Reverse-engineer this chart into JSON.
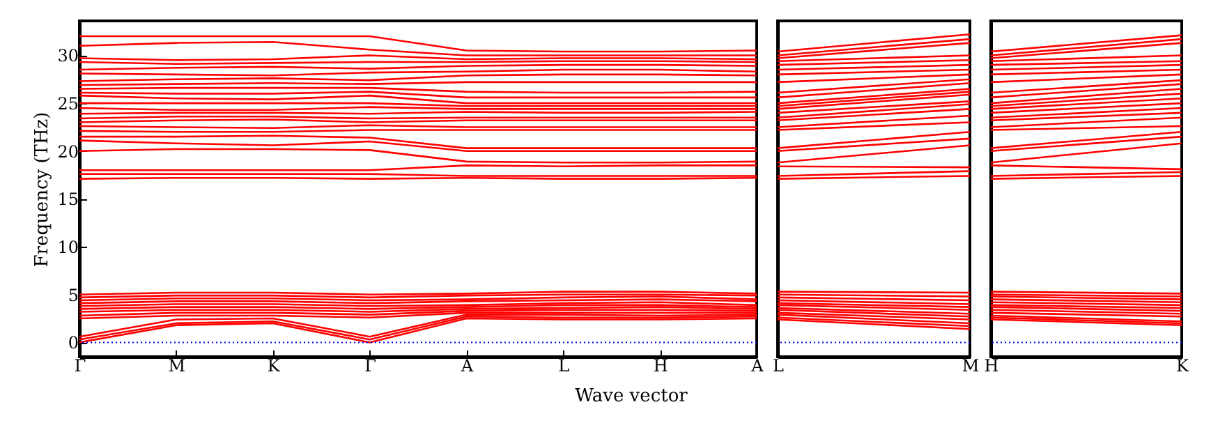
{
  "chart_data": [
    {
      "type": "line",
      "ylabel": "Frequency (THz)",
      "xlabel": "Wave vector",
      "grid": false,
      "marker": "none",
      "line_style": "solid",
      "categories": [
        "Γ",
        "M",
        "K",
        "Γ",
        "A",
        "L",
        "H",
        "A"
      ],
      "ylim": [
        -1.5,
        33.6
      ],
      "yticks": [
        0,
        5,
        10,
        15,
        20,
        25,
        30
      ],
      "ref_lines": [
        {
          "axis": "y",
          "value": 0,
          "color": "#0000ff",
          "line_style": "dotted"
        }
      ],
      "series": [
        {
          "color": "#ff0000",
          "values": [
            0.0,
            1.8,
            2.0,
            0.0,
            2.5,
            2.4,
            2.4,
            2.5
          ]
        },
        {
          "color": "#ff0000",
          "values": [
            0.3,
            2.0,
            2.2,
            0.3,
            2.7,
            2.6,
            2.6,
            2.7
          ]
        },
        {
          "color": "#ff0000",
          "values": [
            0.6,
            2.4,
            2.5,
            0.6,
            2.9,
            2.9,
            2.8,
            2.9
          ]
        },
        {
          "color": "#ff0000",
          "values": [
            2.5,
            2.8,
            2.8,
            2.6,
            3.1,
            3.1,
            3.1,
            3.1
          ]
        },
        {
          "color": "#ff0000",
          "values": [
            2.8,
            3.1,
            3.1,
            2.9,
            3.3,
            3.4,
            3.4,
            3.3
          ]
        },
        {
          "color": "#ff0000",
          "values": [
            3.2,
            3.4,
            3.4,
            3.2,
            3.5,
            3.6,
            3.7,
            3.5
          ]
        },
        {
          "color": "#ff0000",
          "values": [
            3.5,
            3.7,
            3.7,
            3.5,
            3.7,
            3.9,
            3.9,
            3.7
          ]
        },
        {
          "color": "#ff0000",
          "values": [
            3.8,
            4.0,
            4.0,
            3.8,
            3.9,
            4.1,
            4.2,
            3.9
          ]
        },
        {
          "color": "#ff0000",
          "values": [
            4.1,
            4.3,
            4.3,
            4.1,
            4.3,
            4.4,
            4.5,
            4.3
          ]
        },
        {
          "color": "#ff0000",
          "values": [
            4.4,
            4.6,
            4.6,
            4.4,
            4.5,
            4.7,
            4.8,
            4.5
          ]
        },
        {
          "color": "#ff0000",
          "values": [
            4.7,
            4.9,
            4.9,
            4.7,
            4.9,
            5.0,
            5.0,
            4.9
          ]
        },
        {
          "color": "#ff0000",
          "values": [
            5.0,
            5.2,
            5.2,
            5.0,
            5.1,
            5.3,
            5.3,
            5.1
          ]
        },
        {
          "color": "#ff0000",
          "values": [
            17.1,
            17.2,
            17.2,
            17.1,
            17.2,
            17.1,
            17.1,
            17.2
          ]
        },
        {
          "color": "#ff0000",
          "values": [
            17.6,
            17.6,
            17.6,
            17.6,
            17.4,
            17.4,
            17.4,
            17.4
          ]
        },
        {
          "color": "#ff0000",
          "values": [
            18.0,
            18.0,
            18.0,
            18.0,
            18.5,
            18.4,
            18.5,
            18.5
          ]
        },
        {
          "color": "#ff0000",
          "values": [
            20.0,
            20.2,
            20.2,
            20.1,
            18.9,
            18.8,
            18.8,
            18.9
          ]
        },
        {
          "color": "#ff0000",
          "values": [
            21.1,
            20.8,
            20.6,
            21.0,
            20.0,
            20.0,
            20.0,
            20.0
          ]
        },
        {
          "color": "#ff0000",
          "values": [
            21.5,
            21.5,
            21.6,
            21.4,
            20.3,
            20.3,
            20.3,
            20.3
          ]
        },
        {
          "color": "#ff0000",
          "values": [
            22.1,
            22.0,
            22.0,
            22.2,
            22.2,
            22.2,
            22.2,
            22.2
          ]
        },
        {
          "color": "#ff0000",
          "values": [
            22.6,
            22.5,
            22.4,
            22.7,
            22.5,
            22.5,
            22.5,
            22.5
          ]
        },
        {
          "color": "#ff0000",
          "values": [
            23.0,
            23.2,
            23.3,
            23.0,
            23.2,
            23.2,
            23.2,
            23.2
          ]
        },
        {
          "color": "#ff0000",
          "values": [
            23.4,
            23.6,
            23.6,
            23.4,
            23.5,
            23.5,
            23.5,
            23.5
          ]
        },
        {
          "color": "#ff0000",
          "values": [
            23.9,
            24.0,
            24.0,
            23.9,
            24.1,
            24.0,
            24.0,
            24.1
          ]
        },
        {
          "color": "#ff0000",
          "values": [
            24.5,
            24.3,
            24.3,
            24.6,
            24.4,
            24.4,
            24.4,
            24.4
          ]
        },
        {
          "color": "#ff0000",
          "values": [
            25.0,
            25.0,
            25.0,
            25.0,
            24.7,
            24.7,
            24.7,
            24.7
          ]
        },
        {
          "color": "#ff0000",
          "values": [
            25.8,
            25.5,
            25.4,
            25.8,
            25.0,
            25.0,
            25.0,
            25.0
          ]
        },
        {
          "color": "#ff0000",
          "values": [
            26.1,
            26.0,
            26.0,
            26.2,
            25.6,
            25.6,
            25.6,
            25.6
          ]
        },
        {
          "color": "#ff0000",
          "values": [
            26.5,
            26.6,
            26.6,
            26.6,
            26.2,
            26.1,
            26.1,
            26.2
          ]
        },
        {
          "color": "#ff0000",
          "values": [
            26.9,
            27.0,
            27.1,
            27.0,
            27.2,
            27.2,
            27.2,
            27.2
          ]
        },
        {
          "color": "#ff0000",
          "values": [
            27.3,
            27.5,
            27.6,
            27.4,
            27.9,
            28.0,
            28.0,
            27.9
          ]
        },
        {
          "color": "#ff0000",
          "values": [
            28.1,
            28.0,
            27.9,
            28.2,
            28.3,
            28.5,
            28.5,
            28.3
          ]
        },
        {
          "color": "#ff0000",
          "values": [
            28.5,
            28.7,
            28.8,
            28.6,
            28.9,
            29.0,
            29.0,
            28.9
          ]
        },
        {
          "color": "#ff0000",
          "values": [
            29.3,
            29.1,
            29.2,
            29.3,
            29.3,
            29.4,
            29.4,
            29.3
          ]
        },
        {
          "color": "#ff0000",
          "values": [
            29.7,
            29.5,
            29.6,
            30.0,
            29.6,
            29.7,
            29.7,
            29.6
          ]
        },
        {
          "color": "#ff0000",
          "values": [
            31.0,
            31.3,
            31.4,
            30.6,
            30.0,
            30.0,
            30.0,
            30.0
          ]
        },
        {
          "color": "#ff0000",
          "values": [
            32.0,
            32.0,
            32.0,
            32.0,
            30.5,
            30.4,
            30.4,
            30.5
          ]
        }
      ]
    },
    {
      "type": "line",
      "marker": "none",
      "line_style": "solid",
      "tick_labels": "x",
      "categories": [
        "L",
        "M"
      ],
      "ylim": [
        -1.5,
        33.6
      ],
      "yticks": [
        0,
        5,
        10,
        15,
        20,
        25,
        30
      ],
      "ref_lines": [
        {
          "axis": "y",
          "value": 0,
          "color": "#0000ff",
          "line_style": "dotted"
        }
      ],
      "series": [
        {
          "color": "#ff0000",
          "values": [
            2.4,
            1.4
          ]
        },
        {
          "color": "#ff0000",
          "values": [
            2.6,
            1.7
          ]
        },
        {
          "color": "#ff0000",
          "values": [
            2.9,
            2.0
          ]
        },
        {
          "color": "#ff0000",
          "values": [
            3.1,
            2.4
          ]
        },
        {
          "color": "#ff0000",
          "values": [
            3.4,
            2.7
          ]
        },
        {
          "color": "#ff0000",
          "values": [
            3.6,
            3.0
          ]
        },
        {
          "color": "#ff0000",
          "values": [
            3.9,
            3.4
          ]
        },
        {
          "color": "#ff0000",
          "values": [
            4.1,
            3.7
          ]
        },
        {
          "color": "#ff0000",
          "values": [
            4.4,
            4.0
          ]
        },
        {
          "color": "#ff0000",
          "values": [
            4.7,
            4.4
          ]
        },
        {
          "color": "#ff0000",
          "values": [
            5.0,
            4.8
          ]
        },
        {
          "color": "#ff0000",
          "values": [
            5.3,
            5.2
          ]
        },
        {
          "color": "#ff0000",
          "values": [
            17.1,
            17.4
          ]
        },
        {
          "color": "#ff0000",
          "values": [
            17.4,
            17.9
          ]
        },
        {
          "color": "#ff0000",
          "values": [
            18.4,
            18.3
          ]
        },
        {
          "color": "#ff0000",
          "values": [
            18.8,
            20.6
          ]
        },
        {
          "color": "#ff0000",
          "values": [
            20.0,
            21.3
          ]
        },
        {
          "color": "#ff0000",
          "values": [
            20.3,
            22.0
          ]
        },
        {
          "color": "#ff0000",
          "values": [
            22.2,
            23.0
          ]
        },
        {
          "color": "#ff0000",
          "values": [
            22.5,
            23.7
          ]
        },
        {
          "color": "#ff0000",
          "values": [
            23.2,
            24.4
          ]
        },
        {
          "color": "#ff0000",
          "values": [
            23.5,
            24.9
          ]
        },
        {
          "color": "#ff0000",
          "values": [
            24.0,
            25.2
          ]
        },
        {
          "color": "#ff0000",
          "values": [
            24.4,
            25.9
          ]
        },
        {
          "color": "#ff0000",
          "values": [
            24.7,
            26.2
          ]
        },
        {
          "color": "#ff0000",
          "values": [
            25.0,
            26.5
          ]
        },
        {
          "color": "#ff0000",
          "values": [
            25.6,
            27.1
          ]
        },
        {
          "color": "#ff0000",
          "values": [
            26.1,
            27.5
          ]
        },
        {
          "color": "#ff0000",
          "values": [
            27.2,
            28.0
          ]
        },
        {
          "color": "#ff0000",
          "values": [
            28.0,
            28.5
          ]
        },
        {
          "color": "#ff0000",
          "values": [
            28.5,
            29.0
          ]
        },
        {
          "color": "#ff0000",
          "values": [
            29.0,
            29.5
          ]
        },
        {
          "color": "#ff0000",
          "values": [
            29.4,
            30.0
          ]
        },
        {
          "color": "#ff0000",
          "values": [
            29.7,
            31.3
          ]
        },
        {
          "color": "#ff0000",
          "values": [
            30.0,
            31.7
          ]
        },
        {
          "color": "#ff0000",
          "values": [
            30.4,
            32.2
          ]
        }
      ]
    },
    {
      "type": "line",
      "marker": "none",
      "line_style": "solid",
      "tick_labels": "x",
      "categories": [
        "H",
        "K"
      ],
      "ylim": [
        -1.5,
        33.6
      ],
      "yticks": [
        0,
        5,
        10,
        15,
        20,
        25,
        30
      ],
      "ref_lines": [
        {
          "axis": "y",
          "value": 0,
          "color": "#0000ff",
          "line_style": "dotted"
        }
      ],
      "series": [
        {
          "color": "#ff0000",
          "values": [
            2.4,
            1.8
          ]
        },
        {
          "color": "#ff0000",
          "values": [
            2.6,
            2.0
          ]
        },
        {
          "color": "#ff0000",
          "values": [
            2.8,
            2.2
          ]
        },
        {
          "color": "#ff0000",
          "values": [
            3.1,
            2.7
          ]
        },
        {
          "color": "#ff0000",
          "values": [
            3.4,
            3.0
          ]
        },
        {
          "color": "#ff0000",
          "values": [
            3.7,
            3.3
          ]
        },
        {
          "color": "#ff0000",
          "values": [
            3.9,
            3.6
          ]
        },
        {
          "color": "#ff0000",
          "values": [
            4.2,
            3.9
          ]
        },
        {
          "color": "#ff0000",
          "values": [
            4.5,
            4.2
          ]
        },
        {
          "color": "#ff0000",
          "values": [
            4.8,
            4.5
          ]
        },
        {
          "color": "#ff0000",
          "values": [
            5.0,
            4.8
          ]
        },
        {
          "color": "#ff0000",
          "values": [
            5.3,
            5.1
          ]
        },
        {
          "color": "#ff0000",
          "values": [
            17.1,
            17.4
          ]
        },
        {
          "color": "#ff0000",
          "values": [
            17.4,
            17.8
          ]
        },
        {
          "color": "#ff0000",
          "values": [
            18.5,
            18.1
          ]
        },
        {
          "color": "#ff0000",
          "values": [
            18.8,
            20.8
          ]
        },
        {
          "color": "#ff0000",
          "values": [
            20.0,
            21.5
          ]
        },
        {
          "color": "#ff0000",
          "values": [
            20.3,
            22.0
          ]
        },
        {
          "color": "#ff0000",
          "values": [
            22.2,
            22.6
          ]
        },
        {
          "color": "#ff0000",
          "values": [
            22.5,
            23.5
          ]
        },
        {
          "color": "#ff0000",
          "values": [
            23.2,
            24.0
          ]
        },
        {
          "color": "#ff0000",
          "values": [
            23.5,
            24.5
          ]
        },
        {
          "color": "#ff0000",
          "values": [
            24.0,
            25.0
          ]
        },
        {
          "color": "#ff0000",
          "values": [
            24.4,
            25.5
          ]
        },
        {
          "color": "#ff0000",
          "values": [
            24.7,
            26.0
          ]
        },
        {
          "color": "#ff0000",
          "values": [
            25.0,
            26.5
          ]
        },
        {
          "color": "#ff0000",
          "values": [
            25.6,
            27.0
          ]
        },
        {
          "color": "#ff0000",
          "values": [
            26.1,
            27.4
          ]
        },
        {
          "color": "#ff0000",
          "values": [
            27.2,
            28.0
          ]
        },
        {
          "color": "#ff0000",
          "values": [
            28.0,
            28.5
          ]
        },
        {
          "color": "#ff0000",
          "values": [
            28.5,
            29.0
          ]
        },
        {
          "color": "#ff0000",
          "values": [
            29.0,
            29.4
          ]
        },
        {
          "color": "#ff0000",
          "values": [
            29.4,
            30.0
          ]
        },
        {
          "color": "#ff0000",
          "values": [
            29.7,
            31.3
          ]
        },
        {
          "color": "#ff0000",
          "values": [
            30.0,
            31.7
          ]
        },
        {
          "color": "#ff0000",
          "values": [
            30.4,
            32.1
          ]
        }
      ]
    }
  ]
}
